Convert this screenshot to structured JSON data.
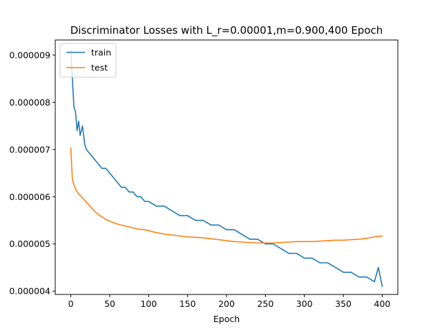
{
  "chart_data": {
    "type": "line",
    "title": "Discriminator Losses with L_r=0.00001,m=0.900,400 Epoch",
    "xlabel": "Epoch",
    "ylabel": "",
    "xlim": [
      -20,
      420
    ],
    "ylim": [
      3.93e-06,
      9.32e-06
    ],
    "x_ticks": [
      0,
      50,
      100,
      150,
      200,
      250,
      300,
      350,
      400
    ],
    "x_tick_labels": [
      "0",
      "50",
      "100",
      "150",
      "200",
      "250",
      "300",
      "350",
      "400"
    ],
    "y_ticks": [
      4e-06,
      5e-06,
      6e-06,
      7e-06,
      8e-06,
      9e-06
    ],
    "y_tick_labels": [
      "0.000004",
      "0.000005",
      "0.000006",
      "0.000007",
      "0.000008",
      "0.000009"
    ],
    "grid": false,
    "legend_position": "upper-left",
    "series": [
      {
        "name": "train",
        "color": "#1f77b4",
        "x": [
          0,
          2,
          4,
          6,
          8,
          10,
          12,
          15,
          18,
          20,
          25,
          30,
          35,
          40,
          45,
          50,
          55,
          60,
          65,
          70,
          75,
          80,
          85,
          90,
          95,
          100,
          110,
          120,
          130,
          140,
          150,
          160,
          170,
          180,
          190,
          200,
          210,
          220,
          230,
          240,
          250,
          260,
          270,
          280,
          290,
          300,
          310,
          320,
          330,
          340,
          350,
          360,
          370,
          380,
          390,
          395,
          400
        ],
        "y": [
          9.1e-06,
          8.5e-06,
          7.9e-06,
          7.8e-06,
          7.4e-06,
          7.6e-06,
          7.3e-06,
          7.5e-06,
          7.1e-06,
          7e-06,
          6.9e-06,
          6.8e-06,
          6.7e-06,
          6.6e-06,
          6.6e-06,
          6.5e-06,
          6.4e-06,
          6.3e-06,
          6.2e-06,
          6.2e-06,
          6.1e-06,
          6.1e-06,
          6e-06,
          6e-06,
          5.9e-06,
          5.9e-06,
          5.8e-06,
          5.8e-06,
          5.7e-06,
          5.6e-06,
          5.6e-06,
          5.5e-06,
          5.5e-06,
          5.4e-06,
          5.4e-06,
          5.3e-06,
          5.3e-06,
          5.2e-06,
          5.1e-06,
          5.1e-06,
          5e-06,
          5e-06,
          4.9e-06,
          4.8e-06,
          4.8e-06,
          4.7e-06,
          4.7e-06,
          4.6e-06,
          4.6e-06,
          4.5e-06,
          4.4e-06,
          4.4e-06,
          4.3e-06,
          4.3e-06,
          4.2e-06,
          4.5e-06,
          4.1e-06
        ]
      },
      {
        "name": "test",
        "color": "#ff7f0e",
        "x": [
          0,
          2,
          4,
          6,
          8,
          10,
          12,
          15,
          18,
          20,
          25,
          30,
          35,
          40,
          45,
          50,
          55,
          60,
          65,
          70,
          75,
          80,
          85,
          90,
          95,
          100,
          110,
          120,
          130,
          140,
          150,
          160,
          170,
          180,
          190,
          200,
          210,
          220,
          230,
          240,
          250,
          260,
          270,
          280,
          290,
          300,
          310,
          320,
          330,
          340,
          350,
          360,
          370,
          380,
          390,
          395,
          400
        ],
        "y": [
          7.03e-06,
          6.37e-06,
          6.25e-06,
          6.17e-06,
          6.11e-06,
          6.06e-06,
          6.03e-06,
          5.98e-06,
          5.92e-06,
          5.89e-06,
          5.79e-06,
          5.7e-06,
          5.63e-06,
          5.57e-06,
          5.52e-06,
          5.48e-06,
          5.45e-06,
          5.42e-06,
          5.4e-06,
          5.38e-06,
          5.36e-06,
          5.34e-06,
          5.32e-06,
          5.31e-06,
          5.3e-06,
          5.28e-06,
          5.24e-06,
          5.21e-06,
          5.19e-06,
          5.17e-06,
          5.15e-06,
          5.14e-06,
          5.13e-06,
          5.11e-06,
          5.09e-06,
          5.07e-06,
          5.05e-06,
          5.04e-06,
          5.03e-06,
          5.02e-06,
          5.02e-06,
          5.02e-06,
          5.03e-06,
          5.04e-06,
          5.05e-06,
          5.05e-06,
          5.05e-06,
          5.06e-06,
          5.07e-06,
          5.08e-06,
          5.08e-06,
          5.09e-06,
          5.1e-06,
          5.12e-06,
          5.15e-06,
          5.16e-06,
          5.17e-06
        ]
      }
    ]
  }
}
